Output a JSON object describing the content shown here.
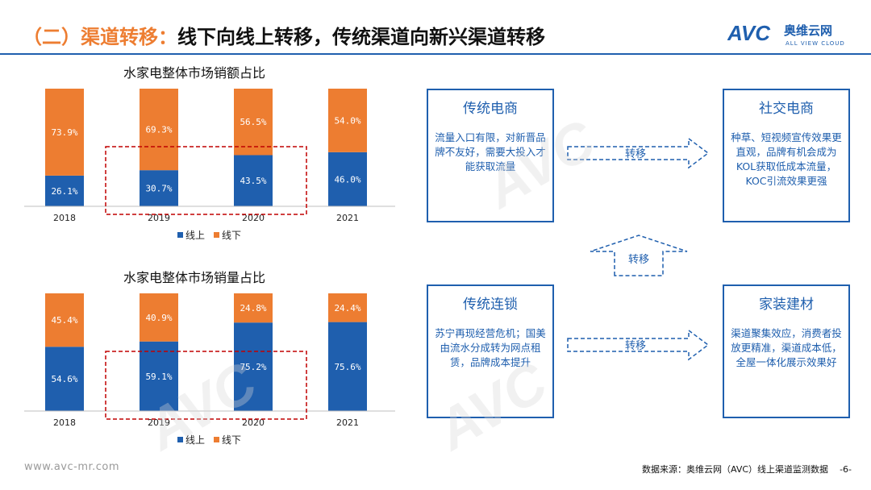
{
  "header": {
    "title_prefix": "（二）渠道转移：",
    "title_main": "线下向线上转移，传统渠道向新兴渠道转移",
    "logo_text": "AVC",
    "logo_cn": "奥维云网",
    "logo_en": "ALL VIEW CLOUD"
  },
  "colors": {
    "online": "#1F5FAE",
    "offline": "#ED7D31",
    "accent_border": "#1F5FAE",
    "highlight_dash": "#C00000"
  },
  "chart_data": [
    {
      "type": "bar",
      "stacked": true,
      "title": "水家电整体市场销额占比",
      "categories": [
        "2018",
        "2019",
        "2020",
        "2021"
      ],
      "series": [
        {
          "name": "线上",
          "values": [
            26.1,
            30.7,
            43.5,
            46.0
          ],
          "labels": [
            "26.1%",
            "30.7%",
            "43.5%",
            "46.0%"
          ]
        },
        {
          "name": "线下",
          "values": [
            73.9,
            69.3,
            56.5,
            54.0
          ],
          "labels": [
            "73.9%",
            "69.3%",
            "56.5%",
            "54.0%"
          ]
        }
      ],
      "ylim": [
        0,
        100
      ],
      "grid": false,
      "legend": "bottom",
      "highlight": [
        "2019",
        "2020"
      ]
    },
    {
      "type": "bar",
      "stacked": true,
      "title": "水家电整体市场销量占比",
      "categories": [
        "2018",
        "2019",
        "2020",
        "2021"
      ],
      "series": [
        {
          "name": "线上",
          "values": [
            54.6,
            59.1,
            75.2,
            75.6
          ],
          "labels": [
            "54.6%",
            "59.1%",
            "75.2%",
            "75.6%"
          ]
        },
        {
          "name": "线下",
          "values": [
            45.4,
            40.9,
            24.8,
            24.4
          ],
          "labels": [
            "45.4%",
            "40.9%",
            "24.8%",
            "24.4%"
          ]
        }
      ],
      "ylim": [
        0,
        100
      ],
      "grid": false,
      "legend": "bottom",
      "highlight": [
        "2019",
        "2020"
      ]
    }
  ],
  "flow": {
    "traditional_ecommerce": {
      "title": "传统电商",
      "text": "流量入口有限，对新晋品牌不友好，需要大投入才能获取流量"
    },
    "social_ecommerce": {
      "title": "社交电商",
      "text": "种草、短视频宣传效果更直观，品牌有机会成为KOL获取低成本流量，KOC引流效果更强"
    },
    "traditional_chain": {
      "title": "传统连锁",
      "text": "苏宁再现经营危机；国美由流水分成转为网点租赁，品牌成本提升"
    },
    "home_building": {
      "title": "家装建材",
      "text": "渠道聚集效应，消费者投放更精准，渠道成本低，全屋一体化展示效果好"
    },
    "arrow_top_label": "转移",
    "arrow_mid_label": "转移",
    "arrow_bottom_label": "转移"
  },
  "footer": {
    "website": "www.avc-mr.com",
    "source": "数据来源：奥维云网（AVC）线上渠道监测数据",
    "page": "-6-"
  }
}
